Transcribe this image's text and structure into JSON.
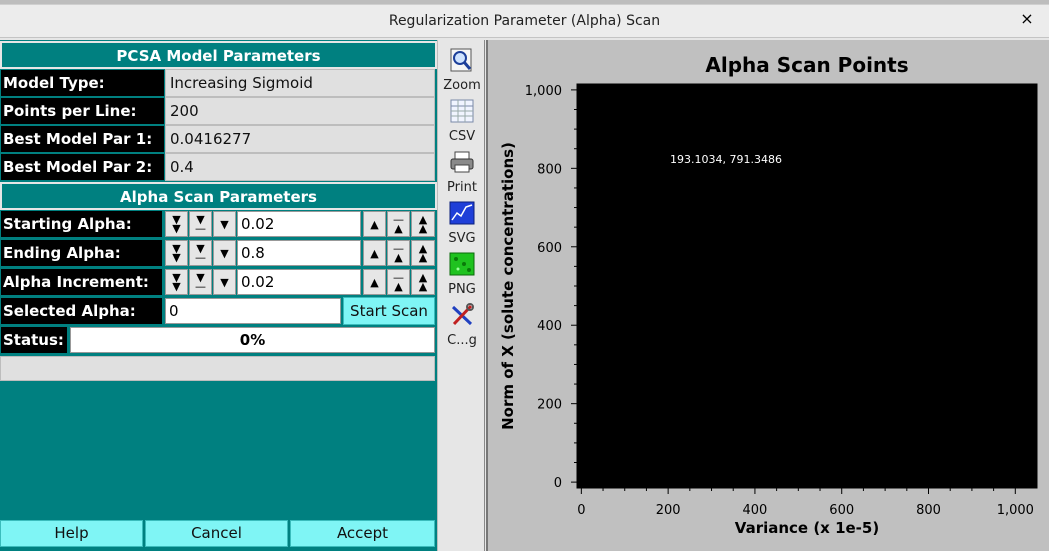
{
  "window": {
    "title": "Regularization Parameter (Alpha) Scan",
    "close_glyph": "×"
  },
  "model": {
    "header": "PCSA Model Parameters",
    "rows": [
      {
        "label": "Model Type:",
        "value": "Increasing Sigmoid"
      },
      {
        "label": "Points per Line:",
        "value": "200"
      },
      {
        "label": "Best Model Par 1:",
        "value": "0.0416277"
      },
      {
        "label": "Best Model Par 2:",
        "value": "0.4"
      }
    ]
  },
  "scan": {
    "header": "Alpha Scan Parameters",
    "counters": [
      {
        "label": "Starting Alpha:",
        "value": "0.02"
      },
      {
        "label": "Ending Alpha:",
        "value": "0.8"
      },
      {
        "label": "Alpha Increment:",
        "value": "0.02"
      }
    ],
    "selected_label": "Selected Alpha:",
    "selected_value": "0",
    "start_button": "Start Scan",
    "status_label": "Status:",
    "progress_text": "0%",
    "progress": 0
  },
  "footer": {
    "help": "Help",
    "cancel": "Cancel",
    "accept": "Accept"
  },
  "toolbar": [
    {
      "label": "Zoom",
      "icon": "zoom-icon"
    },
    {
      "label": "CSV",
      "icon": "csv-icon"
    },
    {
      "label": "Print",
      "icon": "printer-icon"
    },
    {
      "label": "SVG",
      "icon": "svg-icon"
    },
    {
      "label": "PNG",
      "icon": "png-icon"
    },
    {
      "label": "C...g",
      "icon": "config-icon"
    }
  ],
  "chart_data": {
    "type": "scatter",
    "title": "Alpha Scan Points",
    "xlabel": "Variance (x 1e-5)",
    "ylabel": "Norm of X (solute concentrations)",
    "xlim": [
      -10,
      1050
    ],
    "ylim": [
      -15,
      1015
    ],
    "xticks": [
      0,
      200,
      400,
      600,
      800,
      1000
    ],
    "yticks": [
      0,
      200,
      400,
      600,
      800,
      1000
    ],
    "xtick_labels": [
      "0",
      "200",
      "400",
      "600",
      "800",
      "1,000"
    ],
    "ytick_labels": [
      "0",
      "200",
      "400",
      "600",
      "800",
      "1,000"
    ],
    "points": [],
    "annotation": "193.1034, 791.3486",
    "background": "#000000"
  }
}
